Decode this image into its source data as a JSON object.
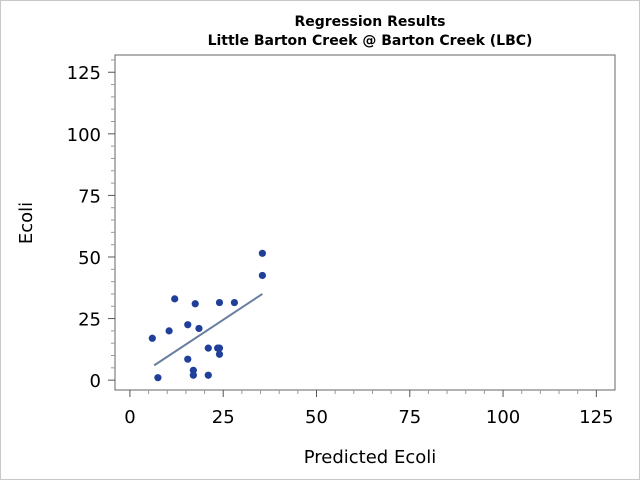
{
  "chart_data": {
    "type": "scatter",
    "title": "Regression Results",
    "subtitle": "Little Barton Creek @ Barton Creek (LBC)",
    "xlabel": "Predicted Ecoli",
    "ylabel": "Ecoli",
    "xlim": [
      -4,
      130
    ],
    "ylim": [
      -4,
      132
    ],
    "xticks": [
      0,
      25,
      50,
      75,
      100,
      125
    ],
    "yticks": [
      0,
      25,
      50,
      75,
      100,
      125
    ],
    "xtick_labels": [
      "0",
      "25",
      "50",
      "75",
      "100",
      "125"
    ],
    "ytick_labels": [
      "0",
      "25",
      "50",
      "75",
      "100",
      "125"
    ],
    "grid": false,
    "colors": {
      "points": "#1f3f99",
      "fit_line": "#6a7fa0",
      "axis": "#555555"
    },
    "series": [
      {
        "kind": "points",
        "points": [
          {
            "x": 6,
            "y": 17
          },
          {
            "x": 7.5,
            "y": 1
          },
          {
            "x": 10.5,
            "y": 20
          },
          {
            "x": 12,
            "y": 33
          },
          {
            "x": 15.5,
            "y": 22.5
          },
          {
            "x": 15.5,
            "y": 8.5
          },
          {
            "x": 17,
            "y": 4
          },
          {
            "x": 17,
            "y": 2
          },
          {
            "x": 17.5,
            "y": 31
          },
          {
            "x": 18.5,
            "y": 21
          },
          {
            "x": 21,
            "y": 13
          },
          {
            "x": 21,
            "y": 2
          },
          {
            "x": 23.5,
            "y": 13
          },
          {
            "x": 24,
            "y": 10.5
          },
          {
            "x": 24,
            "y": 13
          },
          {
            "x": 24,
            "y": 31.5
          },
          {
            "x": 28,
            "y": 31.5
          },
          {
            "x": 35.5,
            "y": 51.5
          },
          {
            "x": 35.5,
            "y": 42.5
          }
        ]
      },
      {
        "kind": "fit_line",
        "points": [
          {
            "x": 6.5,
            "y": 6
          },
          {
            "x": 35.5,
            "y": 35
          }
        ]
      }
    ]
  }
}
